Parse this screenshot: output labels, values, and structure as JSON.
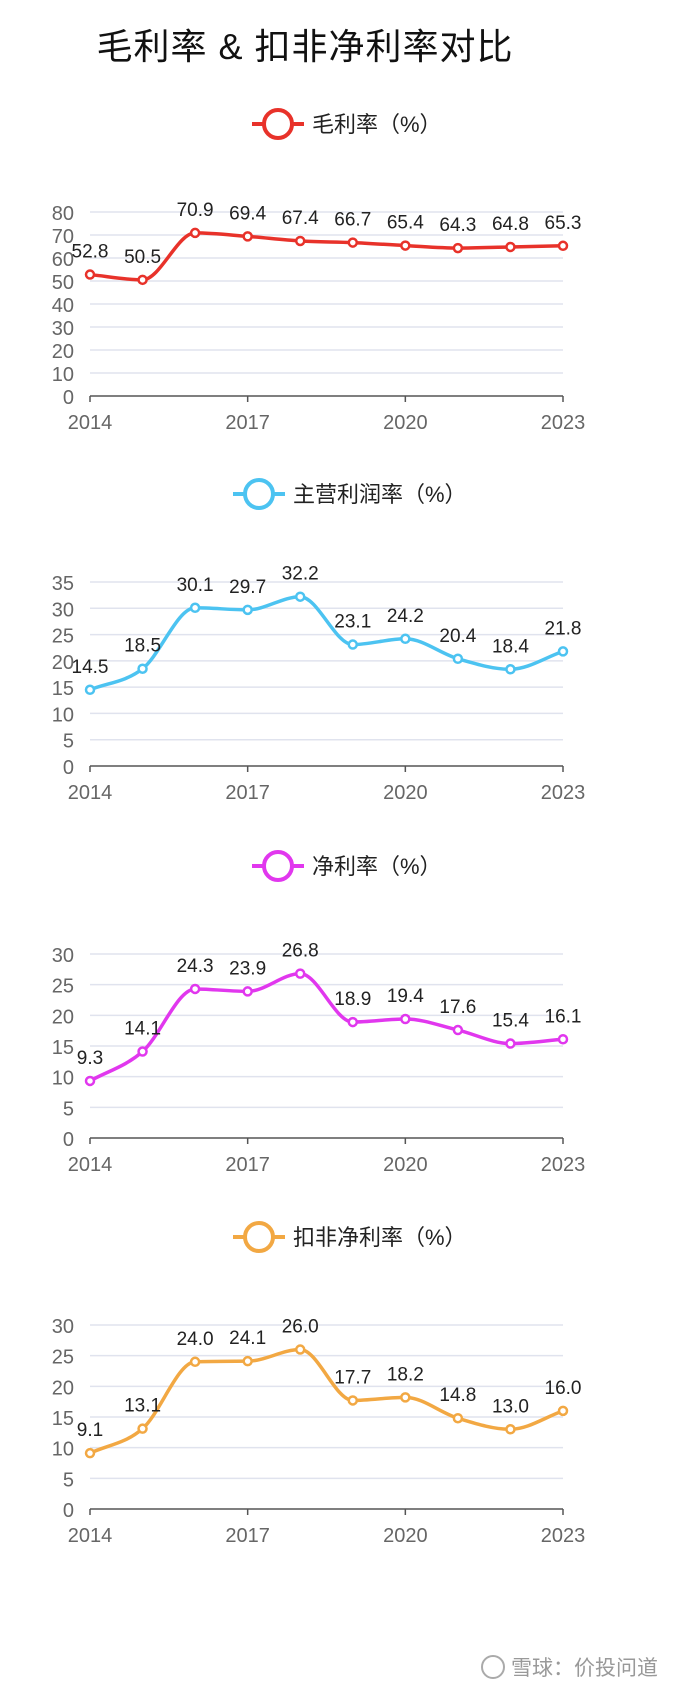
{
  "title": "毛利率 & 扣非净利率对比",
  "watermark": "雪球：价投问道",
  "chart_data": [
    {
      "type": "line",
      "title": "",
      "x": [
        "2014",
        "2015",
        "2016",
        "2017",
        "2018",
        "2019",
        "2020",
        "2021",
        "2022",
        "2023"
      ],
      "x_tick_labels": [
        "2014",
        "2017",
        "2020",
        "2023"
      ],
      "series": [
        {
          "name": "毛利率（%）",
          "color": "#e8322a",
          "values": [
            52.8,
            50.5,
            70.9,
            69.4,
            67.4,
            66.7,
            65.4,
            64.3,
            64.8,
            65.3
          ]
        }
      ],
      "ylim": [
        0,
        80
      ],
      "y_ticks": [
        0,
        10,
        20,
        30,
        40,
        50,
        60,
        70,
        80
      ],
      "grid": true,
      "legend": "top-center",
      "smooth": true
    },
    {
      "type": "line",
      "title": "",
      "x": [
        "2014",
        "2015",
        "2016",
        "2017",
        "2018",
        "2019",
        "2020",
        "2021",
        "2022",
        "2023"
      ],
      "x_tick_labels": [
        "2014",
        "2017",
        "2020",
        "2023"
      ],
      "series": [
        {
          "name": "主营利润率（%）",
          "color": "#4cc3f1",
          "values": [
            14.5,
            18.5,
            30.1,
            29.7,
            32.2,
            23.1,
            24.2,
            20.4,
            18.4,
            21.8
          ]
        }
      ],
      "ylim": [
        0,
        35
      ],
      "y_ticks": [
        0,
        5,
        10,
        15,
        20,
        25,
        30,
        35
      ],
      "grid": true,
      "legend": "top-center",
      "smooth": true
    },
    {
      "type": "line",
      "title": "",
      "x": [
        "2014",
        "2015",
        "2016",
        "2017",
        "2018",
        "2019",
        "2020",
        "2021",
        "2022",
        "2023"
      ],
      "x_tick_labels": [
        "2014",
        "2017",
        "2020",
        "2023"
      ],
      "series": [
        {
          "name": "净利率（%）",
          "color": "#e137ee",
          "values": [
            9.3,
            14.1,
            24.3,
            23.9,
            26.8,
            18.9,
            19.4,
            17.6,
            15.4,
            16.1
          ]
        }
      ],
      "ylim": [
        0,
        30
      ],
      "y_ticks": [
        0,
        5,
        10,
        15,
        20,
        25,
        30
      ],
      "grid": true,
      "legend": "top-center",
      "smooth": true
    },
    {
      "type": "line",
      "title": "",
      "x": [
        "2014",
        "2015",
        "2016",
        "2017",
        "2018",
        "2019",
        "2020",
        "2021",
        "2022",
        "2023"
      ],
      "x_tick_labels": [
        "2014",
        "2017",
        "2020",
        "2023"
      ],
      "series": [
        {
          "name": "扣非净利率（%）",
          "color": "#f2a843",
          "values": [
            9.1,
            13.1,
            24.0,
            24.1,
            26.0,
            17.7,
            18.2,
            14.8,
            13.0,
            16.0
          ]
        }
      ],
      "ylim": [
        0,
        30
      ],
      "y_ticks": [
        0,
        5,
        10,
        15,
        20,
        25,
        30
      ],
      "grid": true,
      "legend": "top-center",
      "smooth": true
    }
  ]
}
